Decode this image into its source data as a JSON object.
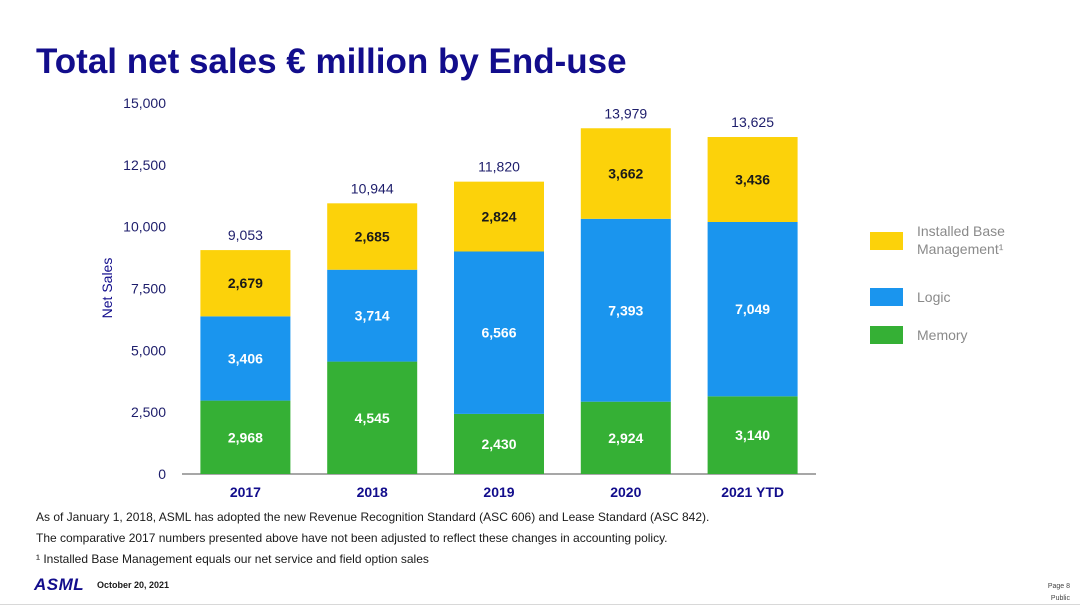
{
  "title": "Total net sales € million by End-use",
  "chart_data": {
    "type": "stacked-bar",
    "title": "Total net sales € million by End-use",
    "ylabel": "Net Sales",
    "xlabel": "",
    "ylim": [
      0,
      15000
    ],
    "yticks": [
      "0",
      "2,500",
      "5,000",
      "7,500",
      "10,000",
      "12,500",
      "15,000"
    ],
    "ytick_values": [
      0,
      2500,
      5000,
      7500,
      10000,
      12500,
      15000
    ],
    "categories": [
      "2017",
      "2018",
      "2019",
      "2020",
      "2021 YTD"
    ],
    "totals": [
      9053,
      10944,
      11820,
      13979,
      13625
    ],
    "total_labels": [
      "9,053",
      "10,944",
      "11,820",
      "13,979",
      "13,625"
    ],
    "series": [
      {
        "name": "Memory",
        "color": "#35b035",
        "values": [
          2968,
          4545,
          2430,
          2924,
          3140
        ],
        "labels": [
          "2,968",
          "4,545",
          "2,430",
          "2,924",
          "3,140"
        ]
      },
      {
        "name": "Logic",
        "color": "#1a95ee",
        "values": [
          3406,
          3714,
          6566,
          7393,
          7049
        ],
        "labels": [
          "3,406",
          "3,714",
          "6,566",
          "7,393",
          "7,049"
        ]
      },
      {
        "name": "Installed Base Management¹",
        "color": "#fcd20a",
        "values": [
          2679,
          2685,
          2824,
          3662,
          3436
        ],
        "labels": [
          "2,679",
          "2,685",
          "2,824",
          "3,662",
          "3,436"
        ]
      }
    ],
    "legend": [
      "Installed Base Management¹",
      "Logic",
      "Memory"
    ]
  },
  "legend": [
    {
      "label": "Installed Base Management¹",
      "color": "#fcd20a"
    },
    {
      "label": "Logic",
      "color": "#1a95ee"
    },
    {
      "label": "Memory",
      "color": "#35b035"
    }
  ],
  "notes": {
    "line1": "As of January 1, 2018, ASML has adopted the new Revenue Recognition Standard (ASC 606) and Lease Standard (ASC 842).",
    "line2": "The comparative 2017 numbers presented above have not been adjusted to reflect these changes in accounting policy.",
    "line3": "¹ Installed Base Management equals our net service and field option sales"
  },
  "footer": {
    "logo": "ASML",
    "date": "October 20, 2021",
    "page": "Page 8",
    "classification": "Public"
  }
}
